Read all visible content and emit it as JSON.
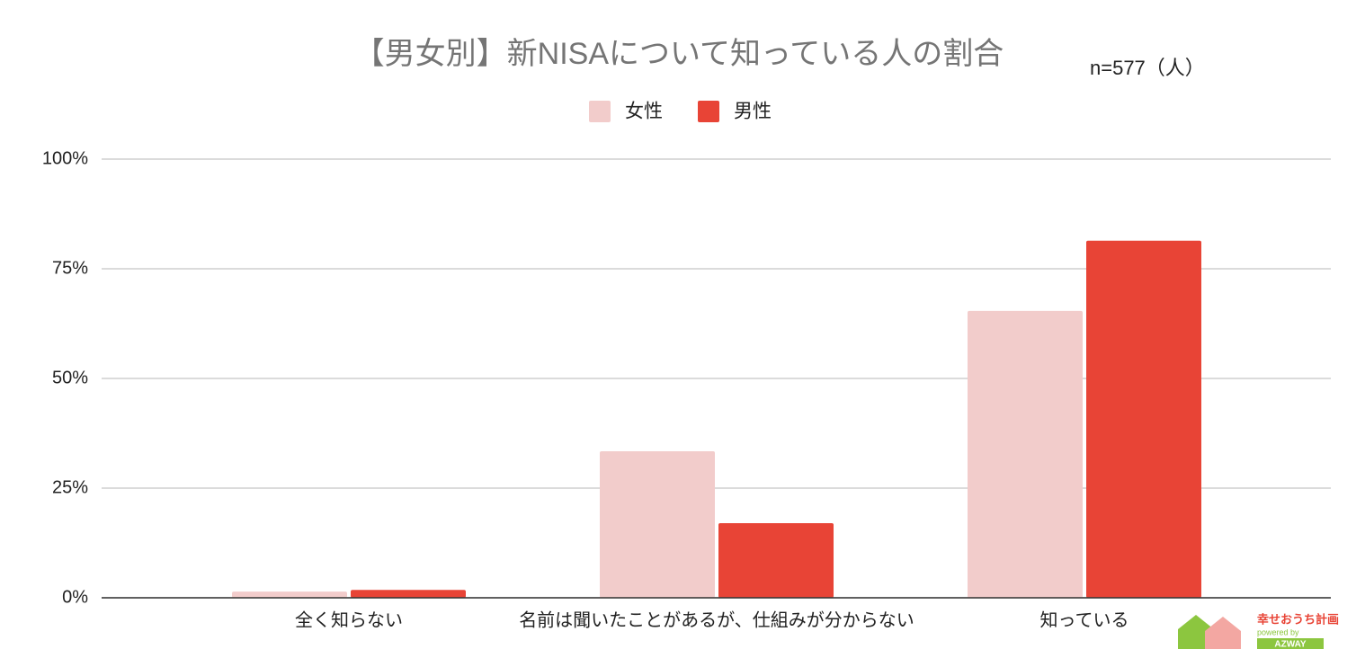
{
  "chart_data": {
    "type": "bar",
    "title": "【男女別】新NISAについて知っている人の割合",
    "annotation": "n=577（人）",
    "categories": [
      "全く知らない",
      "名前は聞いたことがあるが、仕組みが分からない",
      "知っている"
    ],
    "series": [
      {
        "name": "女性",
        "color": "#f2cccb",
        "values": [
          1.4,
          33.4,
          65.4
        ]
      },
      {
        "name": "男性",
        "color": "#e84436",
        "values": [
          1.8,
          17.0,
          81.4
        ]
      }
    ],
    "ylim": [
      0,
      100
    ],
    "yticks": [
      {
        "value": 0,
        "label": "0%"
      },
      {
        "value": 25,
        "label": "25%"
      },
      {
        "value": 50,
        "label": "50%"
      },
      {
        "value": 75,
        "label": "75%"
      },
      {
        "value": 100,
        "label": "100%"
      }
    ],
    "grid": true,
    "legend": "top",
    "logo": {
      "text": "幸せおうち計画",
      "subtext": "powered by",
      "brand": "AZWAY"
    }
  }
}
